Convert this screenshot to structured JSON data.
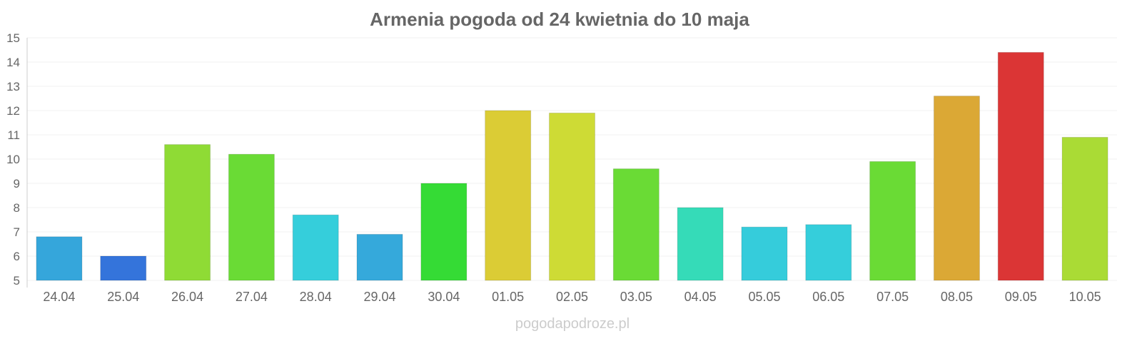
{
  "chart_data": {
    "type": "bar",
    "title": "Armenia pogoda od 24 kwietnia do 10 maja",
    "xlabel": "",
    "ylabel": "",
    "ylim": [
      5,
      15
    ],
    "yticks": [
      5,
      6,
      7,
      8,
      9,
      10,
      11,
      12,
      13,
      14,
      15
    ],
    "grid": true,
    "categories": [
      "24.04",
      "25.04",
      "26.04",
      "27.04",
      "28.04",
      "29.04",
      "30.04",
      "01.05",
      "02.05",
      "03.05",
      "04.05",
      "05.05",
      "06.05",
      "07.05",
      "08.05",
      "09.05",
      "10.05"
    ],
    "values": [
      6.8,
      6.0,
      10.6,
      10.2,
      7.7,
      6.9,
      9.0,
      12.0,
      11.9,
      9.6,
      8.0,
      7.2,
      7.3,
      9.9,
      12.6,
      14.4,
      10.9
    ],
    "colors": [
      "#35a6db",
      "#3474db",
      "#8fdb35",
      "#6adb35",
      "#35cedb",
      "#35a9db",
      "#35db35",
      "#dbcc35",
      "#cedb35",
      "#6adb35",
      "#35dbb8",
      "#35ccdb",
      "#35cedb",
      "#6adb35",
      "#dba835",
      "#db3535",
      "#aadb35"
    ]
  },
  "footer": "pogodapodroze.pl"
}
